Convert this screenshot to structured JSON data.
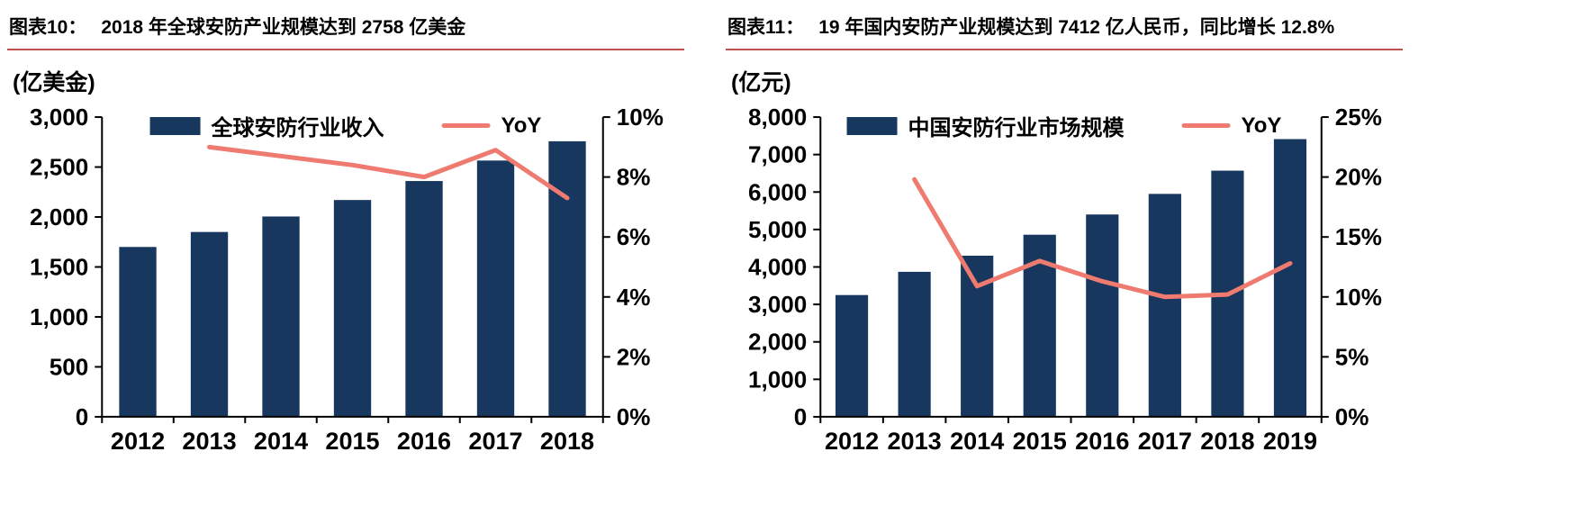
{
  "accent": {
    "header_underline": "#C0504D",
    "bar_color": "#17375E",
    "line_color": "#EF7A70"
  },
  "chart_data": [
    {
      "type": "bar+line",
      "figure_label": "图表10：",
      "title": "2018 年全球安防产业规模达到 2758 亿美金",
      "unit_label": "(亿美金)",
      "categories": [
        "2012",
        "2013",
        "2014",
        "2015",
        "2016",
        "2017",
        "2018"
      ],
      "bar_series": {
        "name": "全球安防行业收入",
        "color": "#17375E",
        "axis": "left",
        "values": [
          1700,
          1850,
          2005,
          2170,
          2360,
          2565,
          2758
        ]
      },
      "line_series": {
        "name": "YoY",
        "color": "#EF7A70",
        "axis": "right",
        "values": [
          null,
          9.0,
          8.7,
          8.4,
          8.0,
          8.9,
          7.3
        ]
      },
      "left_axis": {
        "min": 0,
        "max": 3000,
        "step": 500,
        "ticks": [
          "0",
          "500",
          "1,000",
          "1,500",
          "2,000",
          "2,500",
          "3,000"
        ]
      },
      "right_axis": {
        "min": 0,
        "max": 10,
        "step": 2,
        "ticks": [
          "0%",
          "2%",
          "4%",
          "6%",
          "8%",
          "10%"
        ]
      },
      "legend_position": "top",
      "grid": "off"
    },
    {
      "type": "bar+line",
      "figure_label": "图表11：",
      "title": "19 年国内安防产业规模达到 7412 亿人民币，同比增长 12.8%",
      "unit_label": "(亿元)",
      "categories": [
        "2012",
        "2013",
        "2014",
        "2015",
        "2016",
        "2017",
        "2018",
        "2019"
      ],
      "bar_series": {
        "name": "中国安防行业市场规模",
        "color": "#17375E",
        "axis": "left",
        "values": [
          3250,
          3870,
          4300,
          4860,
          5400,
          5950,
          6570,
          7412
        ]
      },
      "line_series": {
        "name": "YoY",
        "color": "#EF7A70",
        "axis": "right",
        "values": [
          null,
          19.8,
          10.9,
          13.0,
          11.3,
          10.0,
          10.2,
          12.8
        ]
      },
      "left_axis": {
        "min": 0,
        "max": 8000,
        "step": 1000,
        "ticks": [
          "0",
          "1,000",
          "2,000",
          "3,000",
          "4,000",
          "5,000",
          "6,000",
          "7,000",
          "8,000"
        ]
      },
      "right_axis": {
        "min": 0,
        "max": 25,
        "step": 5,
        "ticks": [
          "0%",
          "5%",
          "10%",
          "15%",
          "20%",
          "25%"
        ]
      },
      "legend_position": "top",
      "grid": "off"
    }
  ]
}
